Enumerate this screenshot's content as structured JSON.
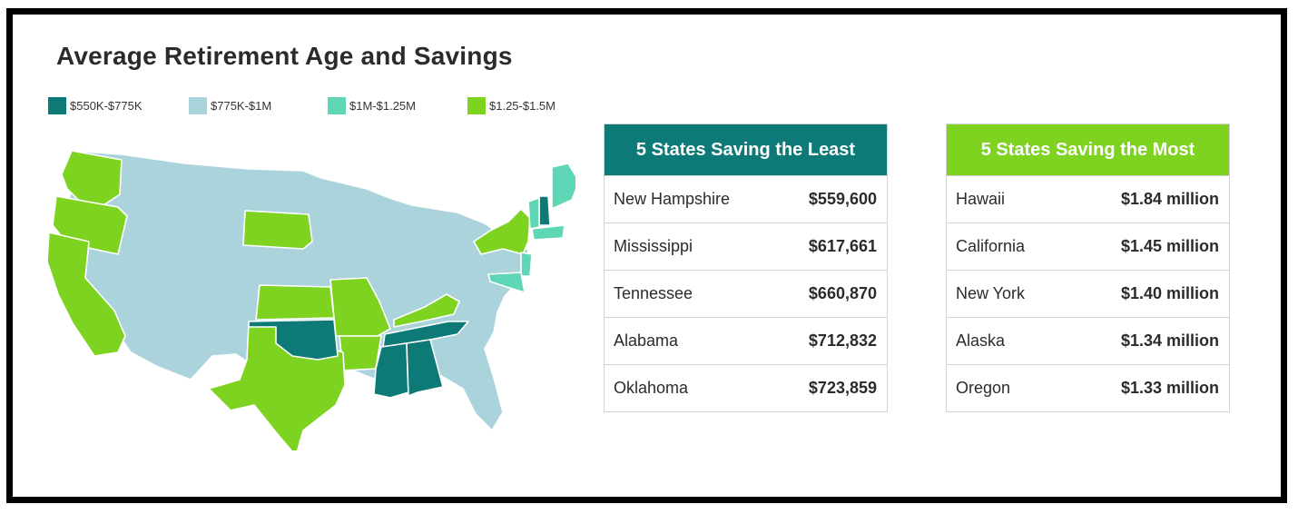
{
  "title": "Average Retirement Age and Savings",
  "legend": [
    {
      "label": "$550K-$775K",
      "color": "#0e7a78"
    },
    {
      "label": "$775K-$1M",
      "color": "#abd3db"
    },
    {
      "label": "$1M-$1.25M",
      "color": "#5fd6b6"
    },
    {
      "label": "$1.25-$1.5M",
      "color": "#7ed321"
    }
  ],
  "map": {
    "name": "United States",
    "state_bins": {
      "$550K-$775K": [
        "New Hampshire",
        "Mississippi",
        "Tennessee",
        "Alabama",
        "Oklahoma"
      ],
      "$1M-$1.25M": [
        "Maine",
        "Vermont",
        "Massachusetts",
        "Connecticut",
        "New Jersey",
        "Maryland",
        "Delaware"
      ],
      "$1.25-$1.5M": [
        "Washington",
        "Oregon",
        "California",
        "South Dakota",
        "Kansas",
        "Missouri",
        "Arkansas",
        "Texas",
        "Kentucky",
        "New York"
      ]
    }
  },
  "least_table": {
    "header": "5 States Saving the Least",
    "header_color": "#0e7a78",
    "rows": [
      {
        "state": "New Hampshire",
        "value": "$559,600"
      },
      {
        "state": "Mississippi",
        "value": "$617,661"
      },
      {
        "state": "Tennessee",
        "value": "$660,870"
      },
      {
        "state": "Alabama",
        "value": "$712,832"
      },
      {
        "state": "Oklahoma",
        "value": "$723,859"
      }
    ]
  },
  "most_table": {
    "header": "5 States Saving the Most",
    "header_color": "#7ed321",
    "rows": [
      {
        "state": "Hawaii",
        "value": "$1.84 million"
      },
      {
        "state": "California",
        "value": "$1.45 million"
      },
      {
        "state": "New York",
        "value": "$1.40 million"
      },
      {
        "state": "Alaska",
        "value": "$1.34 million"
      },
      {
        "state": "Oregon",
        "value": "$1.33 million"
      }
    ]
  }
}
